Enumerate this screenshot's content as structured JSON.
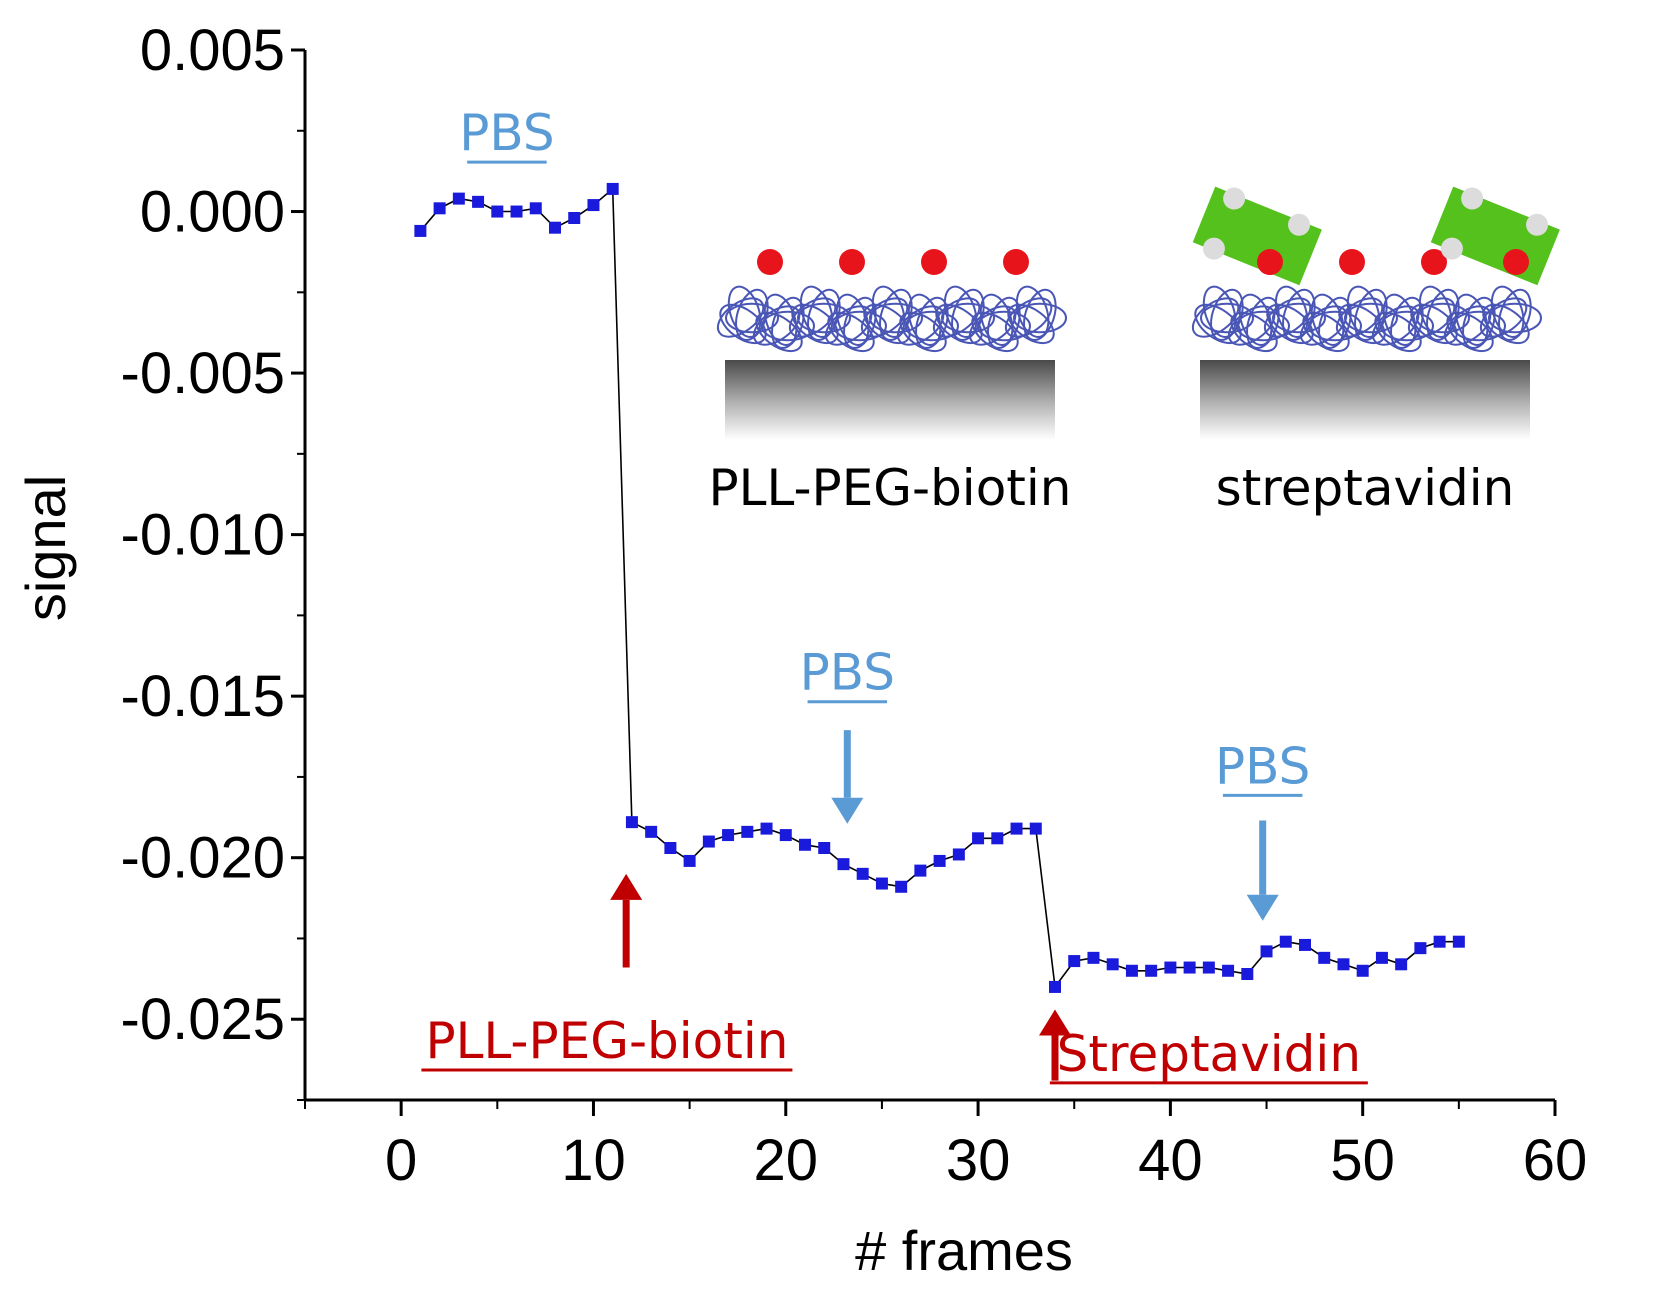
{
  "chart_data": {
    "type": "scatter",
    "xlabel": "# frames",
    "ylabel": "signal",
    "xlim": [
      -5,
      60
    ],
    "ylim": [
      -0.0275,
      0.005
    ],
    "xticks": [
      0,
      10,
      20,
      30,
      40,
      50,
      60
    ],
    "xtick_labels": [
      "0",
      "10",
      "20",
      "30",
      "40",
      "50",
      "60"
    ],
    "yticks": [
      0.005,
      0.0,
      -0.005,
      -0.01,
      -0.015,
      -0.02,
      -0.025
    ],
    "ytick_labels": [
      "0.005",
      "0.000",
      "-0.005",
      "-0.010",
      "-0.015",
      "-0.020",
      "-0.025"
    ],
    "series": [
      {
        "name": "signal",
        "color": "#1a1adc",
        "line_color": "#000000",
        "x": [
          1,
          2,
          3,
          4,
          5,
          6,
          7,
          8,
          9,
          10,
          11,
          12,
          13,
          14,
          15,
          16,
          17,
          18,
          19,
          20,
          21,
          22,
          23,
          24,
          25,
          26,
          27,
          28,
          29,
          30,
          31,
          32,
          33,
          34,
          35,
          36,
          37,
          38,
          39,
          40,
          41,
          42,
          43,
          44,
          45,
          46,
          47,
          48,
          49,
          50,
          51,
          52,
          53,
          54,
          55
        ],
        "y": [
          -0.0006,
          0.0001,
          0.0004,
          0.0003,
          0.0,
          0.0,
          0.0001,
          -0.0005,
          -0.0002,
          0.0002,
          0.0007,
          -0.0189,
          -0.0192,
          -0.0197,
          -0.0201,
          -0.0195,
          -0.0193,
          -0.0192,
          -0.0191,
          -0.0193,
          -0.0196,
          -0.0197,
          -0.0202,
          -0.0205,
          -0.0208,
          -0.0209,
          -0.0204,
          -0.0201,
          -0.0199,
          -0.0194,
          -0.0194,
          -0.0191,
          -0.0191,
          -0.024,
          -0.0232,
          -0.0231,
          -0.0233,
          -0.0235,
          -0.0235,
          -0.0234,
          -0.0234,
          -0.0234,
          -0.0235,
          -0.0236,
          -0.0229,
          -0.0226,
          -0.0227,
          -0.0231,
          -0.0233,
          -0.0235,
          -0.0231,
          -0.0233,
          -0.0228,
          -0.0226,
          -0.0226
        ]
      }
    ],
    "annotations": [
      {
        "id": "pbs1",
        "text": "PBS",
        "color": "#5b9bd5",
        "underline": true,
        "x": 5.5,
        "y": 0.0019
      },
      {
        "id": "pbs2",
        "text": "PBS",
        "color": "#5b9bd5",
        "underline": true,
        "x": 23.2,
        "y": -0.0148,
        "arrow": "down",
        "arrow_from_y": -0.01605,
        "arrow_to_y": -0.01895
      },
      {
        "id": "pbs3",
        "text": "PBS",
        "color": "#5b9bd5",
        "underline": true,
        "x": 44.8,
        "y": -0.0177,
        "arrow": "down",
        "arrow_from_y": -0.01885,
        "arrow_to_y": -0.02195
      },
      {
        "id": "pll",
        "text": "PLL-PEG-biotin",
        "color": "#c00000",
        "underline": true,
        "x": 10.7,
        "y": -0.0262,
        "arrow": "up",
        "arrow_x": 11.7,
        "arrow_from_y": -0.0234,
        "arrow_to_y": -0.0205
      },
      {
        "id": "strep",
        "text": "Streptavidin",
        "color": "#c00000",
        "underline": true,
        "x": 42.0,
        "y": -0.0266,
        "arrow": "up",
        "arrow_x": 34.0,
        "arrow_from_y": -0.0269,
        "arrow_to_y": -0.0247
      }
    ],
    "insets": [
      {
        "id": "inset-pll",
        "label": "PLL-PEG-biotin",
        "biotin_count": 4,
        "streptavidin": false
      },
      {
        "id": "inset-strep",
        "label": "streptavidin",
        "biotin_count": 4,
        "streptavidin": true
      }
    ]
  }
}
